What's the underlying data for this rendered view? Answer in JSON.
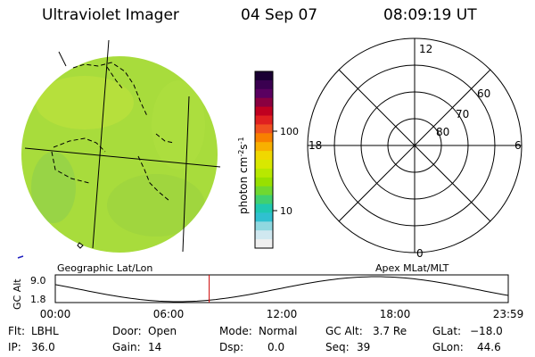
{
  "header": {
    "instrument": "Ultraviolet Imager",
    "date": "04 Sep 07",
    "time": "08:09:19 UT"
  },
  "colorbar": {
    "label_html": "photon cm<tspan baseline-shift='super' font-size='8'>-2</tspan>s<tspan baseline-shift='super' font-size='8'>-1</tspan>",
    "ticks": [
      "100",
      "10"
    ],
    "colors": [
      "#1a0033",
      "#3a0050",
      "#5a0060",
      "#8a0040",
      "#c00020",
      "#e02020",
      "#f05020",
      "#f88000",
      "#f8b000",
      "#f0d800",
      "#d8e800",
      "#b8e800",
      "#98e000",
      "#70d830",
      "#40d070",
      "#20c8b0",
      "#30c0d0",
      "#90d8e0",
      "#d0e8f0",
      "#f0f0f0"
    ]
  },
  "left_map": {
    "caption": "Geographic Lat/Lon",
    "fill_color": "#a8dc3c"
  },
  "right_map": {
    "caption": "Apex MLat/MLT",
    "mlt_labels": {
      "top": "12",
      "left": "18",
      "right": "6",
      "bottom": "0"
    },
    "lat_labels": [
      "60",
      "70",
      "80"
    ]
  },
  "gc_alt_plot": {
    "ylabel": "GC Alt",
    "ymax_label": "9.0",
    "ymin_label": "1.8",
    "x_ticks": [
      "00:00",
      "06:00",
      "12:00",
      "18:00",
      "23:59"
    ],
    "marker_time_hours": 8.155,
    "marker_color": "#cc0000"
  },
  "info": {
    "flt_label": "Flt:",
    "flt_value": "LBHL",
    "ip_label": "IP:",
    "ip_value": "36.0",
    "door_label": "Door:",
    "door_value": "Open",
    "gain_label": "Gain:",
    "gain_value": "14",
    "mode_label": "Mode:",
    "mode_value": "Normal",
    "dsp_label": "Dsp:",
    "dsp_value": "0.0",
    "gcalt_label": "GC Alt:",
    "gcalt_value": "3.7 Re",
    "seq_label": "Seq:",
    "seq_value": "39",
    "glat_label": "GLat:",
    "glat_value": "−18.0",
    "glon_label": "GLon:",
    "glon_value": "44.6"
  }
}
